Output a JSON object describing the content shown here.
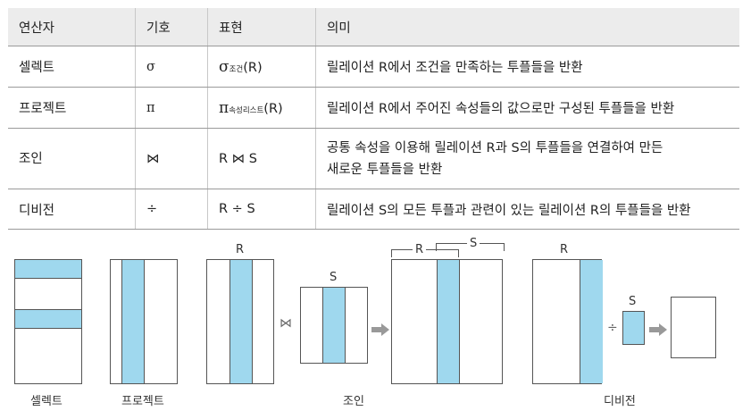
{
  "table": {
    "headers": [
      "연산자",
      "기호",
      "표현",
      "의미"
    ],
    "rows": [
      {
        "operator": "셀렉트",
        "symbol": "σ",
        "expr_main": "σ",
        "expr_sub": "조건",
        "expr_tail": "(R)",
        "meaning": [
          "릴레이션 R에서 조건을 만족하는 투플들을 반환"
        ]
      },
      {
        "operator": "프로젝트",
        "symbol": "π",
        "expr_main": "π",
        "expr_sub": "속성리스트",
        "expr_tail": "(R)",
        "meaning": [
          "릴레이션 R에서 주어진 속성들의 값으로만 구성된 투플들을 반환"
        ]
      },
      {
        "operator": "조인",
        "symbol": "⋈",
        "expr_main": "R ⋈ S",
        "expr_sub": "",
        "expr_tail": "",
        "meaning": [
          "공통 속성을 이용해 릴레이션 R과 S의 투플들을 연결하여 만든",
          "새로운 투플들을 반환"
        ]
      },
      {
        "operator": "디비전",
        "symbol": "÷",
        "expr_main": "R ÷ S",
        "expr_sub": "",
        "expr_tail": "",
        "meaning": [
          "릴레이션 S의 모든 투플과 관련이 있는 릴레이션 R의 투플들을 반환"
        ]
      }
    ]
  },
  "diagrams": {
    "select_caption": "셀렉트",
    "project_caption": "프로젝트",
    "join_caption": "조인",
    "division_caption": "디비전",
    "label_r": "R",
    "label_s": "S",
    "join_symbol": "⋈",
    "division_symbol": "÷",
    "fill_color": "#9fd8ee",
    "arrow_color": "#999999"
  }
}
